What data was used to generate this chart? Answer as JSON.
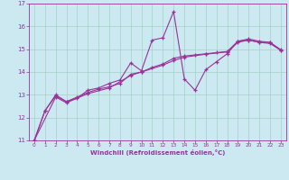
{
  "xlabel": "Windchill (Refroidissement éolien,°C)",
  "bg_color": "#cce8f0",
  "line_color": "#993399",
  "xlim": [
    -0.5,
    23.5
  ],
  "ylim": [
    11,
    17
  ],
  "yticks": [
    11,
    12,
    13,
    14,
    15,
    16,
    17
  ],
  "xticks": [
    0,
    1,
    2,
    3,
    4,
    5,
    6,
    7,
    8,
    9,
    10,
    11,
    12,
    13,
    14,
    15,
    16,
    17,
    18,
    19,
    20,
    21,
    22,
    23
  ],
  "series1": [
    [
      0,
      11.0
    ],
    [
      1,
      12.3
    ],
    [
      2,
      13.0
    ],
    [
      3,
      12.7
    ],
    [
      4,
      12.85
    ],
    [
      5,
      13.2
    ],
    [
      6,
      13.3
    ],
    [
      7,
      13.5
    ],
    [
      8,
      13.65
    ],
    [
      9,
      14.4
    ],
    [
      10,
      14.05
    ],
    [
      11,
      15.4
    ],
    [
      12,
      15.5
    ],
    [
      13,
      16.65
    ],
    [
      14,
      13.7
    ],
    [
      15,
      13.2
    ],
    [
      16,
      14.1
    ],
    [
      17,
      14.45
    ],
    [
      18,
      14.8
    ],
    [
      19,
      15.35
    ],
    [
      20,
      15.4
    ],
    [
      21,
      15.3
    ],
    [
      22,
      15.3
    ],
    [
      23,
      14.95
    ]
  ],
  "series2": [
    [
      0,
      11.0
    ],
    [
      1,
      12.3
    ],
    [
      2,
      12.95
    ],
    [
      3,
      12.7
    ],
    [
      4,
      12.9
    ],
    [
      5,
      13.1
    ],
    [
      6,
      13.25
    ],
    [
      7,
      13.35
    ],
    [
      8,
      13.5
    ],
    [
      9,
      13.9
    ],
    [
      10,
      14.0
    ],
    [
      11,
      14.2
    ],
    [
      12,
      14.35
    ],
    [
      13,
      14.6
    ],
    [
      14,
      14.7
    ],
    [
      15,
      14.75
    ],
    [
      16,
      14.8
    ],
    [
      17,
      14.85
    ],
    [
      18,
      14.9
    ],
    [
      19,
      15.35
    ],
    [
      20,
      15.45
    ],
    [
      21,
      15.35
    ],
    [
      22,
      15.3
    ],
    [
      23,
      14.98
    ]
  ],
  "series3": [
    [
      0,
      11.0
    ],
    [
      2,
      12.9
    ],
    [
      3,
      12.65
    ],
    [
      5,
      13.05
    ],
    [
      7,
      13.3
    ],
    [
      9,
      13.85
    ],
    [
      10,
      14.0
    ],
    [
      12,
      14.3
    ],
    [
      13,
      14.5
    ],
    [
      14,
      14.65
    ],
    [
      16,
      14.78
    ],
    [
      18,
      14.88
    ],
    [
      19,
      15.3
    ],
    [
      20,
      15.4
    ],
    [
      21,
      15.3
    ],
    [
      22,
      15.25
    ],
    [
      23,
      14.95
    ]
  ]
}
